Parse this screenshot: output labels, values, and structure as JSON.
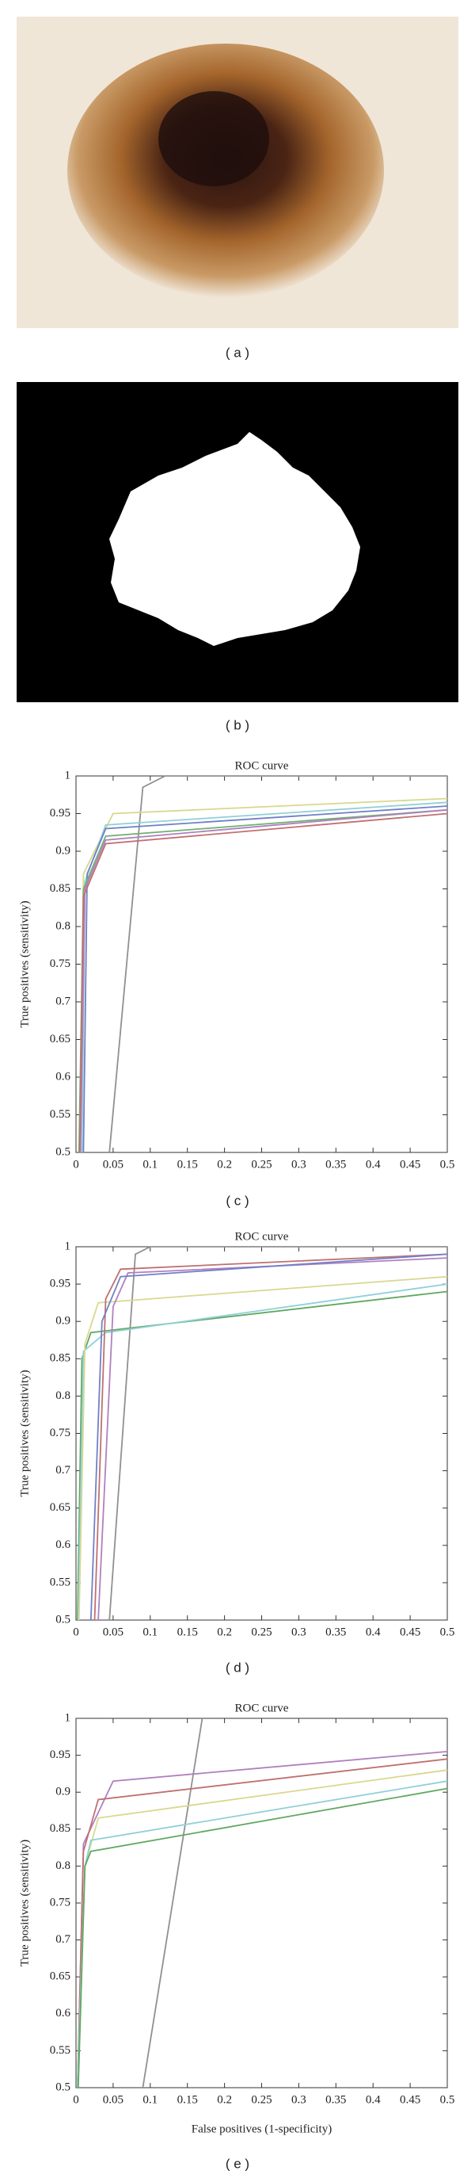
{
  "panels": [
    "( a )",
    "( b )"
  ],
  "chart_data": [
    {
      "type": "line",
      "title": "ROC curve",
      "ylabel": "True positives (sensitivity)",
      "caption": "( c )",
      "xlim": [
        0,
        0.5
      ],
      "ylim": [
        0.5,
        1
      ],
      "xticks": [
        0,
        0.05,
        0.1,
        0.15,
        0.2,
        0.25,
        0.3,
        0.35,
        0.4,
        0.45,
        0.5
      ],
      "yticks": [
        0.5,
        0.55,
        0.6,
        0.65,
        0.7,
        0.75,
        0.8,
        0.85,
        0.9,
        0.95,
        1
      ],
      "series": [
        {
          "color": "#909090",
          "x": [
            0.045,
            0.09,
            0.12,
            0.5
          ],
          "values": [
            0.5,
            0.985,
            1.0,
            1.0
          ]
        },
        {
          "color": "#d8d890",
          "x": [
            0.005,
            0.01,
            0.05,
            0.5
          ],
          "values": [
            0.5,
            0.87,
            0.95,
            0.97
          ]
        },
        {
          "color": "#90d0d8",
          "x": [
            0.008,
            0.012,
            0.04,
            0.5
          ],
          "values": [
            0.5,
            0.86,
            0.935,
            0.965
          ]
        },
        {
          "color": "#7080c8",
          "x": [
            0.01,
            0.015,
            0.04,
            0.5
          ],
          "values": [
            0.5,
            0.87,
            0.93,
            0.96
          ]
        },
        {
          "color": "#70b070",
          "x": [
            0.004,
            0.01,
            0.04,
            0.5
          ],
          "values": [
            0.5,
            0.85,
            0.92,
            0.955
          ]
        },
        {
          "color": "#b080c0",
          "x": [
            0.006,
            0.012,
            0.04,
            0.5
          ],
          "values": [
            0.5,
            0.85,
            0.915,
            0.955
          ]
        },
        {
          "color": "#c07070",
          "x": [
            0.005,
            0.01,
            0.04,
            0.5
          ],
          "values": [
            0.5,
            0.84,
            0.91,
            0.95
          ]
        }
      ]
    },
    {
      "type": "line",
      "title": "ROC curve",
      "ylabel": "True positives (sensitivity)",
      "caption": "( d )",
      "xlim": [
        0,
        0.5
      ],
      "ylim": [
        0.5,
        1
      ],
      "xticks": [
        0,
        0.05,
        0.1,
        0.15,
        0.2,
        0.25,
        0.3,
        0.35,
        0.4,
        0.45,
        0.5
      ],
      "yticks": [
        0.5,
        0.55,
        0.6,
        0.65,
        0.7,
        0.75,
        0.8,
        0.85,
        0.9,
        0.95,
        1
      ],
      "series": [
        {
          "color": "#909090",
          "x": [
            0.045,
            0.08,
            0.1,
            0.5
          ],
          "values": [
            0.5,
            0.99,
            1.0,
            1.0
          ]
        },
        {
          "color": "#60a860",
          "x": [
            0.002,
            0.008,
            0.02,
            0.5
          ],
          "values": [
            0.5,
            0.85,
            0.885,
            0.94
          ]
        },
        {
          "color": "#90d0d8",
          "x": [
            0.003,
            0.01,
            0.04,
            0.5
          ],
          "values": [
            0.5,
            0.86,
            0.885,
            0.95
          ]
        },
        {
          "color": "#d8d890",
          "x": [
            0.004,
            0.012,
            0.03,
            0.5
          ],
          "values": [
            0.5,
            0.87,
            0.925,
            0.96
          ]
        },
        {
          "color": "#c07070",
          "x": [
            0.025,
            0.04,
            0.06,
            0.5
          ],
          "values": [
            0.5,
            0.93,
            0.97,
            0.99
          ]
        },
        {
          "color": "#b080c0",
          "x": [
            0.03,
            0.05,
            0.07,
            0.5
          ],
          "values": [
            0.5,
            0.92,
            0.965,
            0.985
          ]
        },
        {
          "color": "#7080c8",
          "x": [
            0.02,
            0.035,
            0.06,
            0.5
          ],
          "values": [
            0.5,
            0.9,
            0.96,
            0.99
          ]
        }
      ]
    },
    {
      "type": "line",
      "title": "ROC curve",
      "xlabel": "False positives (1-specificity)",
      "ylabel": "True positives (sensitivity)",
      "caption": "( e )",
      "xlim": [
        0,
        0.5
      ],
      "ylim": [
        0.5,
        1
      ],
      "xticks": [
        0,
        0.05,
        0.1,
        0.15,
        0.2,
        0.25,
        0.3,
        0.35,
        0.4,
        0.45,
        0.5
      ],
      "yticks": [
        0.5,
        0.55,
        0.6,
        0.65,
        0.7,
        0.75,
        0.8,
        0.85,
        0.9,
        0.95,
        1
      ],
      "series": [
        {
          "color": "#909090",
          "x": [
            0.09,
            0.17
          ],
          "values": [
            0.5,
            1.0
          ]
        },
        {
          "color": "#b080c0",
          "x": [
            0.002,
            0.01,
            0.05,
            0.5
          ],
          "values": [
            0.5,
            0.83,
            0.915,
            0.955
          ]
        },
        {
          "color": "#c07070",
          "x": [
            0.002,
            0.01,
            0.03,
            0.5
          ],
          "values": [
            0.5,
            0.82,
            0.89,
            0.945
          ]
        },
        {
          "color": "#d8d890",
          "x": [
            0.002,
            0.012,
            0.03,
            0.5
          ],
          "values": [
            0.5,
            0.8,
            0.865,
            0.93
          ]
        },
        {
          "color": "#90d0d8",
          "x": [
            0.002,
            0.012,
            0.02,
            0.5
          ],
          "values": [
            0.5,
            0.8,
            0.835,
            0.915
          ]
        },
        {
          "color": "#60a860",
          "x": [
            0.003,
            0.012,
            0.02,
            0.5
          ],
          "values": [
            0.5,
            0.8,
            0.82,
            0.905
          ]
        }
      ]
    }
  ]
}
